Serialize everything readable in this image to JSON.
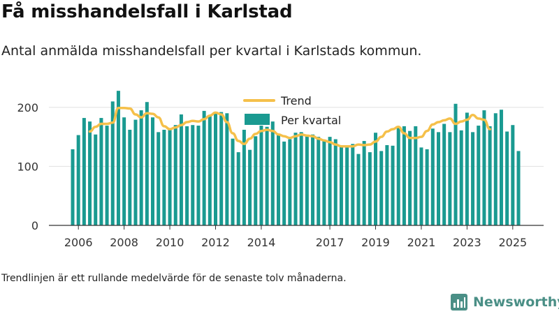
{
  "title": "Få misshandelsfall i Karlstad",
  "subtitle": "Antal anmälda misshandelsfall per kvartal i Karlstads kommun.",
  "footnote": "Trendlinjen är ett rullande medelvärde för de senaste tolv månaderna.",
  "brand": {
    "name": "Newsworthy",
    "icon": "bar-chart-icon",
    "color": "#4a8f86"
  },
  "colors": {
    "bars": "#1a9a91",
    "trend": "#f5c04a",
    "grid": "#e1e1e1",
    "axis": "#333333"
  },
  "chart_data": {
    "type": "bar",
    "ylim": [
      0,
      240
    ],
    "yticks": [
      0,
      100,
      200
    ],
    "xticks": [
      "2006",
      "2008",
      "2010",
      "2012",
      "2014",
      "2017",
      "2019",
      "2021",
      "2023",
      "2025"
    ],
    "grid": true,
    "legend_position": "top-center",
    "series": [
      {
        "name": "Per kvartal",
        "type": "bar",
        "values": [
          129,
          153,
          182,
          176,
          154,
          182,
          169,
          210,
          228,
          183,
          162,
          179,
          195,
          209,
          183,
          158,
          162,
          162,
          170,
          188,
          168,
          170,
          169,
          194,
          185,
          190,
          192,
          190,
          147,
          124,
          162,
          128,
          151,
          169,
          167,
          176,
          153,
          142,
          146,
          157,
          158,
          151,
          154,
          150,
          143,
          150,
          146,
          135,
          133,
          138,
          121,
          143,
          124,
          157,
          126,
          136,
          135,
          167,
          168,
          160,
          168,
          132,
          129,
          164,
          158,
          172,
          158,
          206,
          161,
          191,
          158,
          169,
          195,
          168,
          190,
          196,
          159,
          170,
          126
        ],
        "labels": [
          "2005K4",
          "2006K1",
          "2006K2",
          "2006K3",
          "2006K4",
          "2007K1",
          "2007K2",
          "2007K3",
          "2007K4",
          "2008K1",
          "2008K2",
          "2008K3",
          "2008K4",
          "2009K1",
          "2009K2",
          "2009K3",
          "2009K4",
          "2010K1",
          "2010K2",
          "2010K3",
          "2010K4",
          "2011K1",
          "2011K2",
          "2011K3",
          "2011K4",
          "2012K1",
          "2012K2",
          "2012K3",
          "2012K4",
          "2013K1",
          "2013K2",
          "2013K3",
          "2013K4",
          "2014K1",
          "2014K2",
          "2014K3",
          "2014K4",
          "2015K1",
          "2015K2",
          "2015K3",
          "2015K4",
          "2016K1",
          "2016K2",
          "2016K3",
          "2016K4",
          "2017K1",
          "2017K2",
          "2017K3",
          "2017K4",
          "2018K1",
          "2018K2",
          "2018K3",
          "2018K4",
          "2019K1",
          "2019K2",
          "2019K3",
          "2019K4",
          "2020K1",
          "2020K2",
          "2020K3",
          "2020K4",
          "2021K1",
          "2021K2",
          "2021K3",
          "2021K4",
          "2022K1",
          "2022K2",
          "2022K3",
          "2022K4",
          "2023K1",
          "2023K2",
          "2023K3",
          "2023K4",
          "2024K1",
          "2024K2",
          "2024K3",
          "2024K4",
          "2025K1",
          "2025K2"
        ]
      },
      {
        "name": "Trend",
        "type": "line",
        "start_index": 3,
        "values": [
          159,
          167,
          172,
          172,
          174,
          199,
          199,
          198,
          188,
          183,
          190,
          189,
          183,
          168,
          163,
          166,
          170,
          175,
          177,
          176,
          180,
          186,
          191,
          188,
          175,
          156,
          143,
          138,
          147,
          155,
          160,
          162,
          160,
          154,
          151,
          148,
          151,
          154,
          152,
          151,
          147,
          144,
          141,
          137,
          134,
          134,
          134,
          137,
          136,
          137,
          142,
          150,
          159,
          163,
          167,
          156,
          148,
          148,
          150,
          160,
          171,
          175,
          178,
          181,
          172,
          176,
          179,
          187,
          181,
          179,
          163
        ]
      }
    ]
  }
}
